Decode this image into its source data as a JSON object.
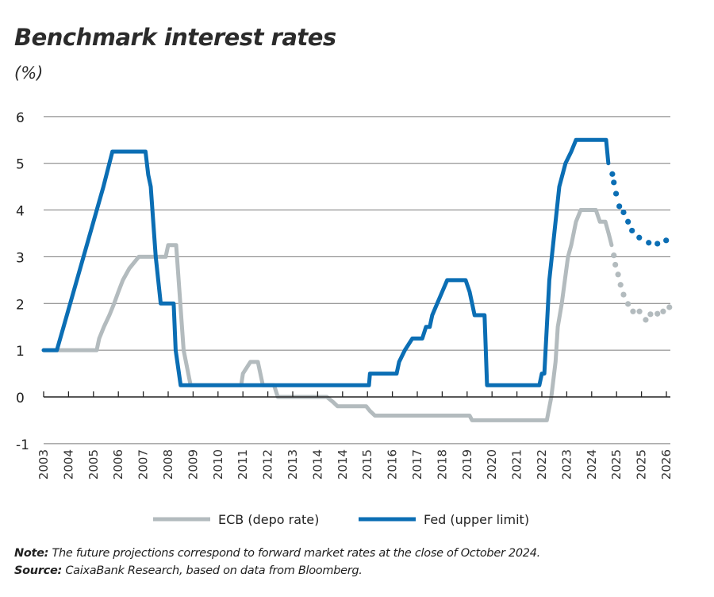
{
  "title": "Benchmark interest rates",
  "subtitle": "(%)",
  "notes": {
    "note_label": "Note:",
    "note_text": " The future projections correspond to forward market rates at the close of October 2024.",
    "source_label": "Source:",
    "source_text": " CaixaBank Research, based on data from Bloomberg."
  },
  "colors": {
    "ecb": "#b3bbbe",
    "fed": "#0b6eb4",
    "grid": "#7a7a7a",
    "axis": "#222222"
  },
  "chart_data": {
    "type": "line",
    "title": "Benchmark interest rates",
    "ylabel": "(%)",
    "ylim": [
      -1,
      6
    ],
    "yticks": [
      6,
      5,
      4,
      3,
      2,
      1,
      0,
      -1
    ],
    "grid": true,
    "legend_placement": "bottom",
    "x_tick_labels": [
      "2003",
      "2004",
      "2005",
      "2006",
      "2007",
      "2008",
      "2009",
      "2010",
      "2011",
      "2012",
      "2013",
      "2014",
      "2014",
      "2015",
      "2016",
      "2017",
      "2018",
      "2019",
      "2020",
      "2021",
      "2022",
      "2023",
      "2024",
      "2025",
      "2025",
      "2026"
    ],
    "series": [
      {
        "name": "ECB (depo rate)",
        "color": "#b3bbbe",
        "historical": [
          [
            0,
            1
          ],
          [
            2.13,
            1
          ],
          [
            2.23,
            1.25
          ],
          [
            2.42,
            1.5
          ],
          [
            2.64,
            1.75
          ],
          [
            2.83,
            2.0
          ],
          [
            3.0,
            2.25
          ],
          [
            3.18,
            2.5
          ],
          [
            3.44,
            2.75
          ],
          [
            3.82,
            3.0
          ],
          [
            4.9,
            3.0
          ],
          [
            5.0,
            3.25
          ],
          [
            5.32,
            3.25
          ],
          [
            5.62,
            1.0
          ],
          [
            5.9,
            0.25
          ],
          [
            7.93,
            0.25
          ],
          [
            8.0,
            0.5
          ],
          [
            8.3,
            0.75
          ],
          [
            8.6,
            0.75
          ],
          [
            8.8,
            0.25
          ],
          [
            9.25,
            0.25
          ],
          [
            9.4,
            0
          ],
          [
            11.37,
            0
          ],
          [
            11.6,
            -0.1
          ],
          [
            11.8,
            -0.2
          ],
          [
            12.95,
            -0.2
          ],
          [
            13.1,
            -0.3
          ],
          [
            13.3,
            -0.4
          ],
          [
            17.1,
            -0.4
          ],
          [
            17.2,
            -0.5
          ],
          [
            20.2,
            -0.5
          ],
          [
            20.38,
            0
          ],
          [
            20.55,
            0.75
          ],
          [
            20.64,
            1.5
          ],
          [
            20.8,
            2.0
          ],
          [
            21.05,
            3.0
          ],
          [
            21.18,
            3.25
          ],
          [
            21.37,
            3.75
          ],
          [
            21.56,
            4.0
          ],
          [
            22.17,
            4.0
          ],
          [
            22.33,
            3.75
          ],
          [
            22.55,
            3.75
          ],
          [
            22.68,
            3.5
          ],
          [
            22.8,
            3.25
          ]
        ],
        "projection": [
          [
            22.89,
            3.03
          ],
          [
            22.95,
            2.83
          ],
          [
            23.06,
            2.62
          ],
          [
            23.16,
            2.4
          ],
          [
            23.28,
            2.19
          ],
          [
            23.46,
            1.99
          ],
          [
            23.66,
            1.83
          ],
          [
            23.92,
            1.83
          ],
          [
            24.17,
            1.65
          ],
          [
            24.36,
            1.77
          ],
          [
            24.64,
            1.78
          ],
          [
            24.87,
            1.83
          ],
          [
            25.12,
            1.92
          ]
        ]
      },
      {
        "name": "Fed (upper limit)",
        "color": "#0b6eb4",
        "historical": [
          [
            0,
            1
          ],
          [
            0.53,
            1
          ],
          [
            0.8,
            1.5
          ],
          [
            1.2,
            2.25
          ],
          [
            1.6,
            3.0
          ],
          [
            2.0,
            3.75
          ],
          [
            2.4,
            4.5
          ],
          [
            2.76,
            5.25
          ],
          [
            4.09,
            5.25
          ],
          [
            4.2,
            4.75
          ],
          [
            4.3,
            4.5
          ],
          [
            4.5,
            3.0
          ],
          [
            4.7,
            2.0
          ],
          [
            5.22,
            2.0
          ],
          [
            5.3,
            1.0
          ],
          [
            5.5,
            0.25
          ],
          [
            13.06,
            0.25
          ],
          [
            13.1,
            0.5
          ],
          [
            14.17,
            0.5
          ],
          [
            14.27,
            0.75
          ],
          [
            14.5,
            1.0
          ],
          [
            14.8,
            1.25
          ],
          [
            15.2,
            1.25
          ],
          [
            15.35,
            1.5
          ],
          [
            15.5,
            1.5
          ],
          [
            15.6,
            1.75
          ],
          [
            15.8,
            2.0
          ],
          [
            16.0,
            2.25
          ],
          [
            16.2,
            2.5
          ],
          [
            16.94,
            2.5
          ],
          [
            17.1,
            2.25
          ],
          [
            17.2,
            2.0
          ],
          [
            17.3,
            1.75
          ],
          [
            17.7,
            1.75
          ],
          [
            17.8,
            0.25
          ],
          [
            19.9,
            0.25
          ],
          [
            20.0,
            0.5
          ],
          [
            20.1,
            0.5
          ],
          [
            20.3,
            2.5
          ],
          [
            20.45,
            3.25
          ],
          [
            20.7,
            4.5
          ],
          [
            20.95,
            5.0
          ],
          [
            21.18,
            5.25
          ],
          [
            21.37,
            5.5
          ],
          [
            22.58,
            5.5
          ],
          [
            22.67,
            5.0
          ]
        ],
        "projection": [
          [
            22.83,
            4.77
          ],
          [
            22.89,
            4.59
          ],
          [
            22.98,
            4.35
          ],
          [
            23.11,
            4.08
          ],
          [
            23.28,
            3.95
          ],
          [
            23.46,
            3.75
          ],
          [
            23.62,
            3.56
          ],
          [
            23.91,
            3.41
          ],
          [
            24.29,
            3.3
          ],
          [
            24.64,
            3.28
          ],
          [
            24.99,
            3.35
          ]
        ]
      }
    ]
  }
}
